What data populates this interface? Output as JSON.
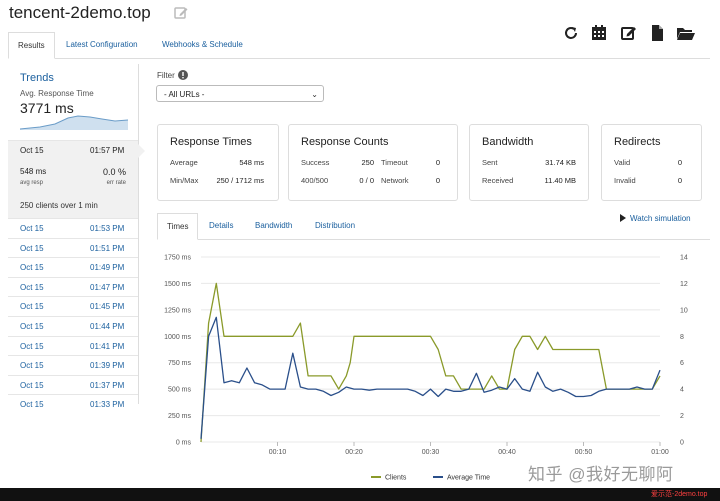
{
  "window": {
    "title": "tencent-2demo.top"
  },
  "tabs": [
    {
      "label": "Results",
      "active": true
    },
    {
      "label": "Latest Configuration",
      "active": false
    },
    {
      "label": "Webhooks & Schedule",
      "active": false
    }
  ],
  "toolbar": {
    "icons": [
      "refresh-icon",
      "calendar-icon",
      "edit-icon",
      "document-icon",
      "folder-open-icon"
    ]
  },
  "trends": {
    "title": "Trends",
    "avg_label": "Avg. Response Time",
    "avg_value": "3771 ms"
  },
  "selected_run": {
    "date": "Oct 15",
    "time": "01:57 PM",
    "avg_resp": "548 ms",
    "avg_resp_label": "avg resp",
    "err_rate": "0.0 %",
    "err_rate_label": "err rate",
    "clients": "250 clients over 1 min"
  },
  "runs": [
    {
      "date": "Oct 15",
      "time": "01:53 PM"
    },
    {
      "date": "Oct 15",
      "time": "01:51 PM"
    },
    {
      "date": "Oct 15",
      "time": "01:49 PM"
    },
    {
      "date": "Oct 15",
      "time": "01:47 PM"
    },
    {
      "date": "Oct 15",
      "time": "01:45 PM"
    },
    {
      "date": "Oct 15",
      "time": "01:44 PM"
    },
    {
      "date": "Oct 15",
      "time": "01:41 PM"
    },
    {
      "date": "Oct 15",
      "time": "01:39 PM"
    },
    {
      "date": "Oct 15",
      "time": "01:37 PM"
    },
    {
      "date": "Oct 15",
      "time": "01:33 PM"
    }
  ],
  "filter": {
    "label": "Filter",
    "selected": "- All URLs -"
  },
  "cards": {
    "response_times": {
      "title": "Response Times",
      "average_label": "Average",
      "average_value": "548 ms",
      "minmax_label": "Min/Max",
      "minmax_value": "250 / 1712 ms"
    },
    "response_counts": {
      "title": "Response Counts",
      "success_label": "Success",
      "success_value": "250",
      "timeout_label": "Timeout",
      "timeout_value": "0",
      "r400_label": "400/500",
      "r400_value": "0 / 0",
      "network_label": "Network",
      "network_value": "0"
    },
    "bandwidth": {
      "title": "Bandwidth",
      "sent_label": "Sent",
      "sent_value": "31.74 KB",
      "received_label": "Received",
      "received_value": "11.40 MB"
    },
    "redirects": {
      "title": "Redirects",
      "valid_label": "Valid",
      "valid_value": "0",
      "invalid_label": "Invalid",
      "invalid_value": "0"
    }
  },
  "subtabs": [
    {
      "label": "Times",
      "active": true
    },
    {
      "label": "Details",
      "active": false
    },
    {
      "label": "Bandwidth",
      "active": false
    },
    {
      "label": "Distribution",
      "active": false
    }
  ],
  "watch_simulation": "Watch simulation",
  "chart_data": {
    "type": "line",
    "y_left_ticks": [
      "1750 ms",
      "1500 ms",
      "1250 ms",
      "1000 ms",
      "750 ms",
      "500 ms",
      "250 ms",
      "0 ms"
    ],
    "y_right_ticks": [
      "14",
      "12",
      "10",
      "8",
      "6",
      "4",
      "2",
      "0"
    ],
    "x_ticks": [
      "00:10",
      "00:20",
      "00:30",
      "00:40",
      "00:50",
      "01:00"
    ],
    "ylim_left": [
      0,
      1750
    ],
    "ylim_right": [
      0,
      14
    ],
    "xlim": [
      0,
      60
    ],
    "legend_position": "bottom",
    "series": [
      {
        "name": "Clients",
        "axis": "right",
        "color": "#8a9a2a",
        "x": [
          0,
          1,
          2,
          3,
          4,
          5,
          6,
          8,
          9,
          10,
          11,
          12,
          13,
          14,
          15,
          17,
          18,
          19,
          19.5,
          20,
          21,
          24,
          25,
          26,
          27,
          30,
          31,
          32,
          33,
          34,
          36,
          37,
          38,
          39,
          40,
          41,
          42,
          43,
          44,
          45,
          46,
          47,
          48,
          49,
          50,
          51,
          52,
          53,
          54,
          55,
          56,
          57,
          58,
          59,
          60
        ],
        "y": [
          0,
          9,
          12,
          8,
          8,
          8,
          8,
          8,
          8,
          8,
          8,
          8,
          9,
          5,
          5,
          5,
          4,
          5,
          6,
          8,
          8,
          8,
          8,
          8,
          8,
          8,
          7,
          5,
          5,
          4,
          4,
          4,
          5,
          4,
          4,
          7,
          8,
          8,
          7,
          8,
          7,
          7,
          7,
          7,
          7,
          7,
          7,
          4,
          4,
          4,
          4,
          4,
          4,
          4,
          5
        ]
      },
      {
        "name": "Average Time",
        "axis": "left",
        "color": "#2a4f8a",
        "x": [
          0,
          1,
          2,
          3,
          4,
          5,
          6,
          7,
          8,
          9,
          10,
          11,
          12,
          13,
          14,
          15,
          16,
          17,
          18,
          19,
          20,
          21,
          22,
          23,
          24,
          25,
          26,
          27,
          28,
          29,
          30,
          31,
          32,
          33,
          34,
          35,
          36,
          37,
          38,
          39,
          40,
          41,
          42,
          43,
          44,
          45,
          46,
          47,
          48,
          49,
          50,
          51,
          52,
          53,
          54,
          55,
          56,
          57,
          58,
          59,
          60
        ],
        "y": [
          30,
          1000,
          1180,
          560,
          580,
          560,
          700,
          560,
          540,
          500,
          500,
          500,
          840,
          520,
          500,
          500,
          480,
          440,
          470,
          520,
          500,
          500,
          490,
          500,
          500,
          500,
          500,
          500,
          480,
          440,
          500,
          430,
          500,
          480,
          480,
          500,
          650,
          470,
          490,
          520,
          500,
          600,
          500,
          480,
          660,
          520,
          480,
          500,
          470,
          430,
          430,
          440,
          480,
          500,
          500,
          500,
          500,
          520,
          500,
          500,
          680
        ]
      }
    ]
  },
  "watermark": "知乎 @我好无聊阿",
  "badge": "爱示范-2demo.top",
  "colors": {
    "link": "#1a5f9e",
    "clients_line": "#8a9a2a",
    "avg_time_line": "#2a4f8a"
  }
}
